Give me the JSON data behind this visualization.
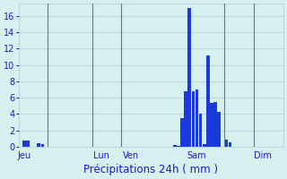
{
  "title": "",
  "xlabel": "Précipitations 24h ( mm )",
  "ylabel": "",
  "background_color": "#d6f0ef",
  "bar_color": "#1a3adb",
  "grid_color": "#aacccc",
  "text_color": "#1a1acc",
  "ylim": [
    0,
    17.5
  ],
  "yticks": [
    0,
    2,
    4,
    6,
    8,
    10,
    12,
    14,
    16
  ],
  "num_bars": 72,
  "bar_values": [
    0,
    0.7,
    0.8,
    0,
    0,
    0.4,
    0.3,
    0,
    0,
    0,
    0,
    0,
    0,
    0,
    0,
    0,
    0,
    0,
    0,
    0,
    0,
    0,
    0,
    0,
    0,
    0,
    0,
    0,
    0,
    0,
    0,
    0,
    0,
    0,
    0,
    0,
    0,
    0,
    0,
    0,
    0,
    0,
    0.2,
    0.1,
    3.5,
    6.8,
    17.0,
    6.8,
    7.0,
    4.0,
    0.3,
    11.2,
    5.3,
    5.5,
    4.2,
    0,
    0.9,
    0.5,
    0,
    0,
    0,
    0,
    0,
    0,
    0,
    0,
    0,
    0,
    0,
    0,
    0,
    0
  ],
  "day_labels": [
    "Jeu",
    "Lun",
    "Ven",
    "Sam",
    "Dim"
  ],
  "day_positions": [
    1,
    22,
    30,
    48,
    66
  ],
  "xlabel_fontsize": 8.5,
  "tick_fontsize": 7,
  "vline_positions": [
    8,
    20,
    28,
    56,
    64
  ],
  "vline_color": "#667788"
}
